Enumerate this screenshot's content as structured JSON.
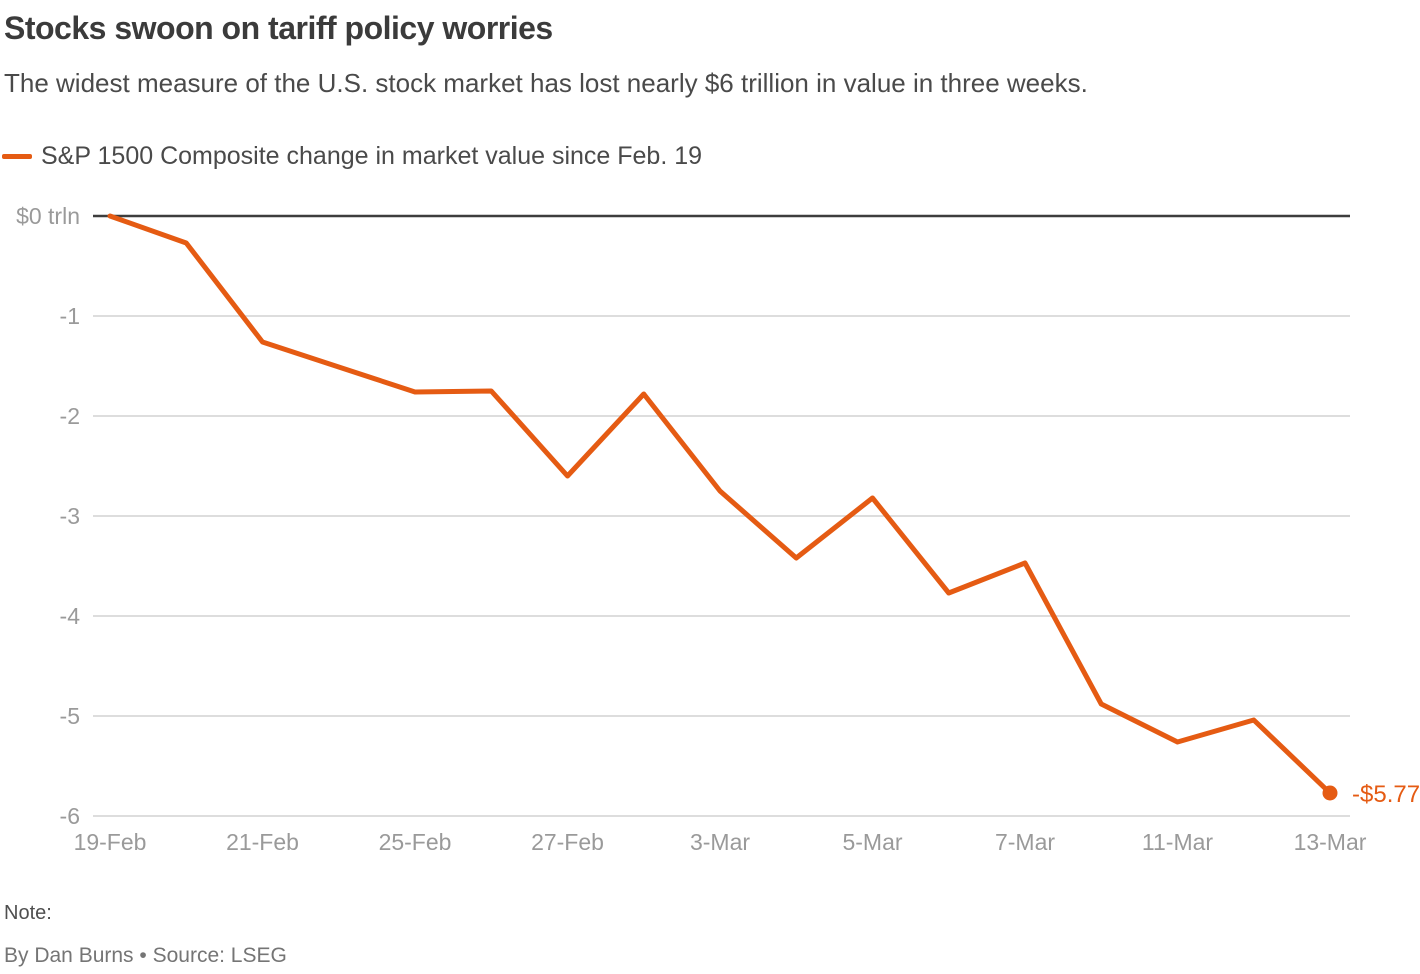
{
  "header": {
    "title": "Stocks swoon on tariff policy worries",
    "subtitle": "The widest measure of the U.S. stock market has lost nearly $6 trillion in value in three weeks.",
    "legend_label": "S&P 1500 Composite change in market value since Feb. 19"
  },
  "chart_data": {
    "type": "line",
    "series_name": "S&P 1500 Composite change in market value since Feb. 19",
    "x": [
      "19-Feb",
      "20-Feb",
      "21-Feb",
      "24-Feb",
      "25-Feb",
      "26-Feb",
      "27-Feb",
      "28-Feb",
      "3-Mar",
      "4-Mar",
      "5-Mar",
      "6-Mar",
      "7-Mar",
      "10-Mar",
      "11-Mar",
      "12-Mar",
      "13-Mar"
    ],
    "values": [
      0,
      -0.27,
      -1.26,
      -1.51,
      -1.76,
      -1.75,
      -2.6,
      -1.78,
      -2.75,
      -3.42,
      -2.82,
      -3.77,
      -3.47,
      -4.88,
      -5.26,
      -5.04,
      -5.77
    ],
    "x_tick_labels": [
      "19-Feb",
      "21-Feb",
      "25-Feb",
      "27-Feb",
      "3-Mar",
      "5-Mar",
      "7-Mar",
      "11-Mar",
      "13-Mar"
    ],
    "y_ticks": [
      0,
      -1,
      -2,
      -3,
      -4,
      -5,
      -6
    ],
    "y_tick_labels": [
      "$0 trln",
      "-1",
      "-2",
      "-3",
      "-4",
      "-5",
      "-6"
    ],
    "ylim": [
      -6,
      0
    ],
    "units": "trillion USD",
    "end_label": "-$5.77",
    "grid": true,
    "legend_position": "top-left",
    "line_color": "#e55b13",
    "zero_line_color": "#3d3d3d",
    "grid_color": "#d2d2d2",
    "axis_label_color": "#9a9a9a"
  },
  "footer": {
    "note_label": "Note:",
    "byline": "By Dan Burns • Source: LSEG"
  }
}
